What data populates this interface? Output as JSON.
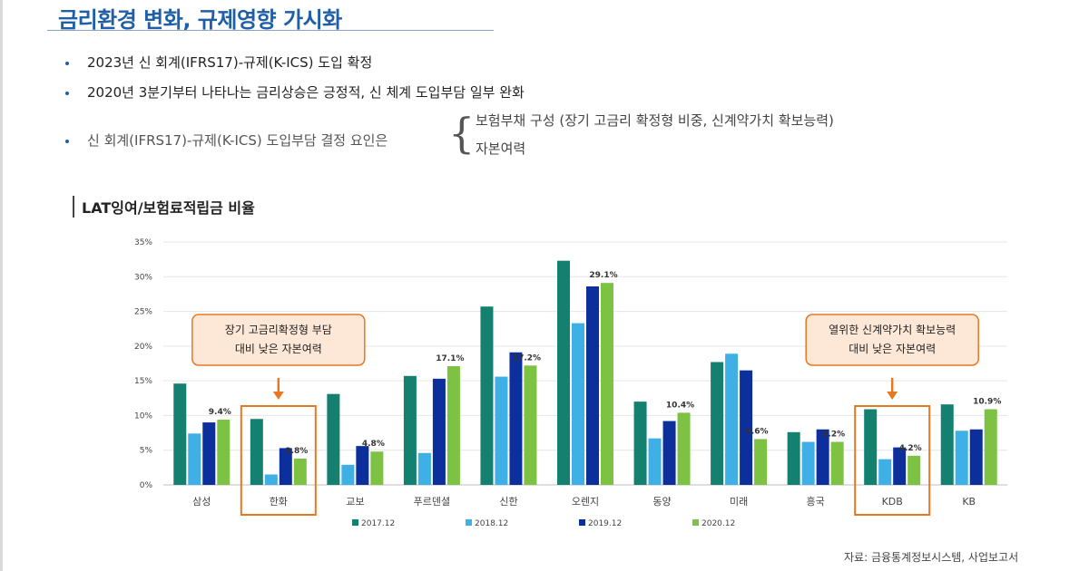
{
  "slide": {
    "title": "금리환경 변화, 규제영향 가시화",
    "bullets": [
      "2023년 신 회계(IFRS17)-규제(K-ICS) 도입 확정",
      "2020년 3분기부터 나타나는 금리상승은 긍정적, 신 체계 도입부담 일부 완화",
      "신 회계(IFRS17)-규제(K-ICS)  도입부담 결정 요인은"
    ],
    "factors": [
      "보험부채 구성 (장기 고금리 확정형 비중, 신계약가치 확보능력)",
      "자본여력"
    ],
    "section_title": "LAT잉여/보험료적립금 비율",
    "source": "자료: 금융통계정보시스템, 사업보고서"
  },
  "chart_data": {
    "type": "bar",
    "title": "LAT잉여/보험료적립금 비율",
    "categories": [
      "삼성",
      "한화",
      "교보",
      "푸르덴셜",
      "신한",
      "오렌지",
      "동양",
      "미래",
      "흥국",
      "KDB",
      "KB"
    ],
    "series": [
      {
        "name": "2017.12",
        "color": "#14806f",
        "values": [
          14.6,
          9.5,
          13.1,
          15.7,
          25.7,
          32.3,
          12.0,
          17.7,
          7.6,
          10.9,
          11.6
        ]
      },
      {
        "name": "2018.12",
        "color": "#3fb0e6",
        "values": [
          7.4,
          1.5,
          2.9,
          4.6,
          15.6,
          23.3,
          6.7,
          18.9,
          6.2,
          3.7,
          7.8
        ]
      },
      {
        "name": "2019.12",
        "color": "#0d2f9c",
        "values": [
          9.0,
          5.3,
          5.6,
          15.3,
          19.1,
          28.6,
          9.2,
          16.5,
          8.0,
          5.4,
          8.0
        ]
      },
      {
        "name": "2020.12",
        "color": "#7dc242",
        "values": [
          9.4,
          3.8,
          4.8,
          17.1,
          17.2,
          29.1,
          10.4,
          6.6,
          6.2,
          4.2,
          10.9
        ]
      }
    ],
    "data_labels": [
      "9.4%",
      "3.8%",
      "4.8%",
      "17.1%",
      "17.2%",
      "29.1%",
      "10.4%",
      "6.6%",
      "6.2%",
      "4.2%",
      "10.9%"
    ],
    "ylim": [
      0,
      35
    ],
    "yticks": [
      "0%",
      "5%",
      "10%",
      "15%",
      "20%",
      "25%",
      "30%",
      "35%"
    ],
    "grid": true,
    "legend_position": "bottom",
    "callouts": [
      {
        "lines": [
          "장기 고금리확정형 부담",
          "대비 낮은 자본여력"
        ],
        "category": "한화"
      },
      {
        "lines": [
          "열위한 신계약가치 확보능력",
          "대비 낮은 자본여력"
        ],
        "category": "KDB"
      }
    ],
    "highlight_color": "#e87722"
  }
}
